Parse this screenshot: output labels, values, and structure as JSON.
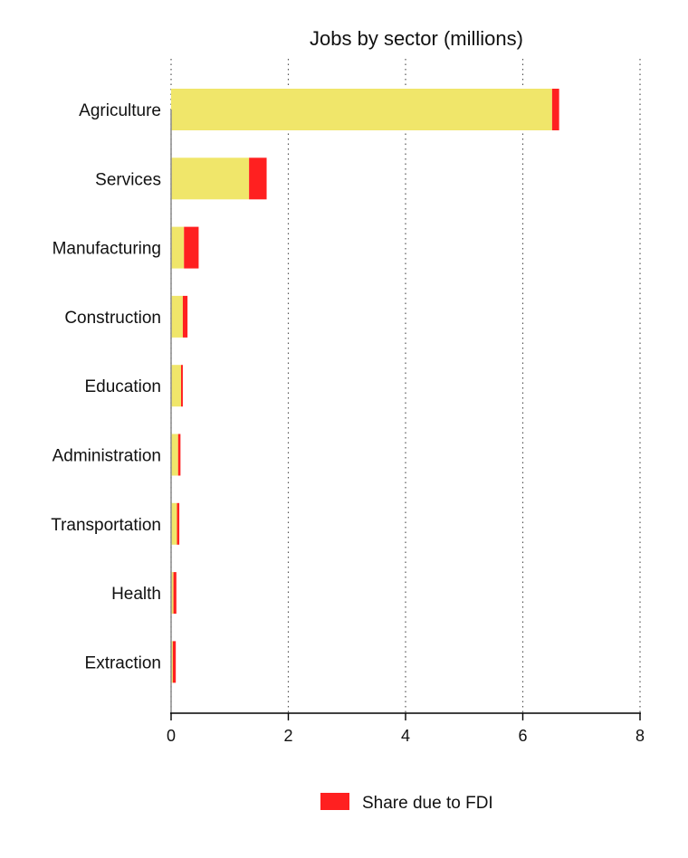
{
  "chart_data": {
    "type": "bar",
    "orientation": "horizontal",
    "stacked": true,
    "title": "Jobs by sector (millions)",
    "xlabel": "",
    "ylabel": "",
    "xlim": [
      0,
      8
    ],
    "x_ticks": [
      0,
      2,
      4,
      6,
      8
    ],
    "grid": "vertical dotted",
    "categories": [
      "Agriculture",
      "Services",
      "Manufacturing",
      "Construction",
      "Education",
      "Administration",
      "Transportation",
      "Health",
      "Extraction"
    ],
    "series": [
      {
        "color": "#f0e66a",
        "values": [
          6.5,
          1.33,
          0.22,
          0.2,
          0.17,
          0.12,
          0.1,
          0.04,
          0.03
        ]
      },
      {
        "name": "Share due to FDI",
        "color": "#ff2020",
        "values": [
          0.12,
          0.3,
          0.25,
          0.08,
          0.03,
          0.04,
          0.04,
          0.05,
          0.05
        ]
      }
    ],
    "legend": {
      "position": "bottom-center",
      "entries": [
        "Share due to FDI"
      ]
    }
  }
}
